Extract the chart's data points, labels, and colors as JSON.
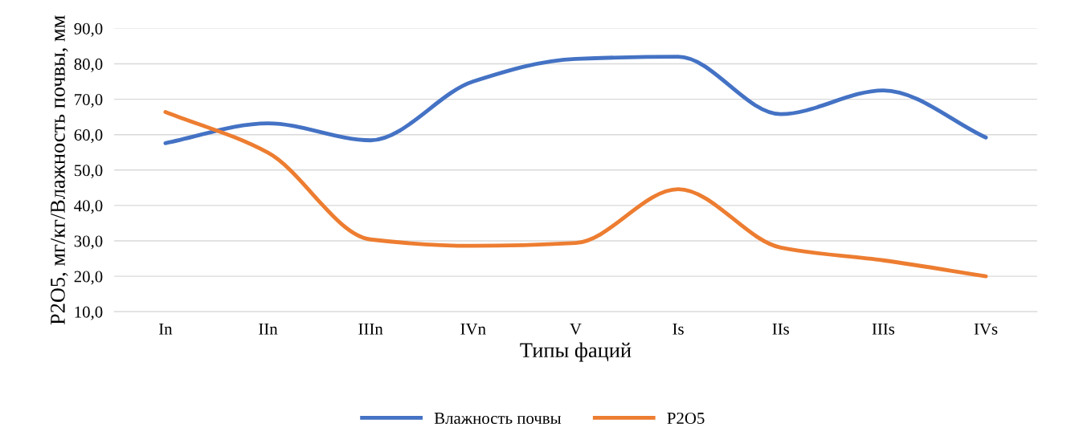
{
  "chart_data": {
    "type": "line",
    "xlabel": "Типы фаций",
    "ylabel": "P2O5, мг/кг/Влажность почвы, мм",
    "categories": [
      "In",
      "IIn",
      "IIIn",
      "IVn",
      "V",
      "Is",
      "IIs",
      "IIIs",
      "IVs"
    ],
    "series": [
      {
        "name": "Влажность почвы",
        "color": "#4472c4",
        "values": [
          57.6,
          63.2,
          58.4,
          75.0,
          81.4,
          82.0,
          65.8,
          72.5,
          59.2
        ]
      },
      {
        "name": "P2O5",
        "color": "#ed7d31",
        "values": [
          66.4,
          54.9,
          30.4,
          28.6,
          29.4,
          44.6,
          28.1,
          24.5,
          20.0
        ]
      }
    ],
    "ylim": [
      10,
      90
    ],
    "yticks": [
      {
        "value": 10,
        "label": "10,0"
      },
      {
        "value": 20,
        "label": "20,0"
      },
      {
        "value": 30,
        "label": "30,0"
      },
      {
        "value": 40,
        "label": "40,0"
      },
      {
        "value": 50,
        "label": "50,0"
      },
      {
        "value": 60,
        "label": "60,0"
      },
      {
        "value": 70,
        "label": "70,0"
      },
      {
        "value": 80,
        "label": "80,0"
      },
      {
        "value": 90,
        "label": "90,0"
      }
    ],
    "grid": "y",
    "legend": "bottom",
    "marker": "none",
    "line_style": "solid"
  }
}
